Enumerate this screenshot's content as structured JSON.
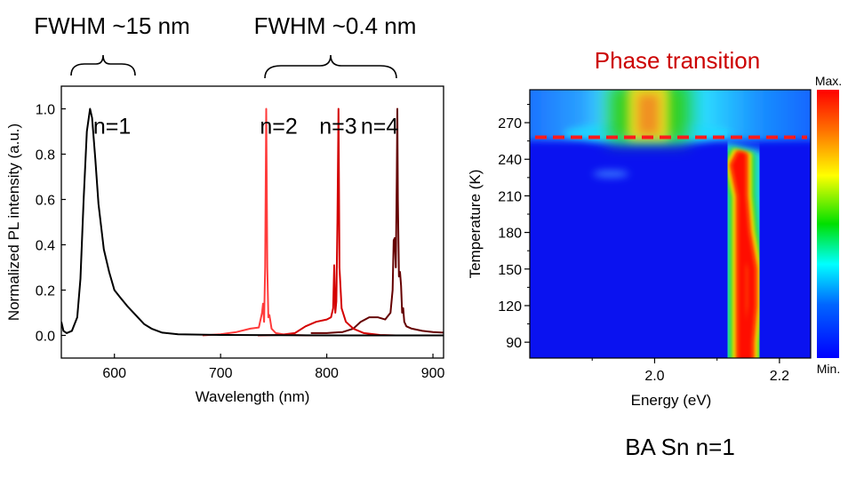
{
  "annotations": {
    "fwhm_left": "FWHM ~15 nm",
    "fwhm_right": "FWHM ~0.4 nm",
    "phase_transition": "Phase transition",
    "sample_label": "BA Sn n=1"
  },
  "colors": {
    "n1": "#000000",
    "n2": "#ff3b3b",
    "n3": "#d40000",
    "n4": "#650000",
    "dashed_line": "#ff1a1a",
    "phase_text": "#cc0000"
  },
  "chart_data": [
    {
      "type": "line",
      "title": "",
      "xlabel": "Wavelength (nm)",
      "ylabel": "Normalized PL intensity (a.u.)",
      "xlim": [
        550,
        910
      ],
      "ylim": [
        -0.1,
        1.1
      ],
      "xticks": [
        600,
        700,
        800,
        900
      ],
      "xtick_labels": [
        "600",
        "700",
        "800",
        "900"
      ],
      "yticks": [
        0.0,
        0.2,
        0.4,
        0.6,
        0.8,
        1.0
      ],
      "ytick_labels": [
        "0.0",
        "0.2",
        "0.4",
        "0.6",
        "0.8",
        "1.0"
      ],
      "grid": false,
      "series": [
        {
          "name": "n=1",
          "label_x": 580,
          "x": [
            550,
            552,
            555,
            560,
            565,
            568,
            571,
            574,
            577,
            579,
            582,
            585,
            590,
            595,
            600,
            605,
            612,
            620,
            628,
            635,
            645,
            660,
            700,
            800,
            910
          ],
          "y": [
            0.06,
            0.02,
            0.01,
            0.02,
            0.08,
            0.25,
            0.6,
            0.9,
            1.0,
            0.96,
            0.78,
            0.58,
            0.38,
            0.28,
            0.2,
            0.17,
            0.13,
            0.09,
            0.05,
            0.03,
            0.012,
            0.005,
            0.002,
            0.0,
            0.0
          ]
        },
        {
          "name": "n=2",
          "label_x": 737,
          "x": [
            683,
            700,
            715,
            728,
            736,
            739,
            740,
            741,
            742,
            743,
            744,
            745,
            746,
            748,
            752,
            760,
            780,
            865
          ],
          "y": [
            0.0,
            0.005,
            0.015,
            0.03,
            0.035,
            0.1,
            0.14,
            0.06,
            0.3,
            1.0,
            0.3,
            0.08,
            0.09,
            0.03,
            0.01,
            0.004,
            0.0,
            0.0
          ]
        },
        {
          "name": "n=3",
          "label_x": 793,
          "x": [
            735,
            755,
            770,
            780,
            790,
            800,
            804,
            806,
            807,
            808,
            809,
            810,
            811,
            812,
            814,
            818,
            825,
            835,
            850,
            865
          ],
          "y": [
            0.0,
            0.002,
            0.01,
            0.04,
            0.06,
            0.07,
            0.08,
            0.12,
            0.31,
            0.1,
            0.15,
            0.5,
            1.0,
            0.3,
            0.12,
            0.06,
            0.03,
            0.01,
            0.002,
            0.0
          ]
        },
        {
          "name": "n=4",
          "label_x": 832,
          "x": [
            785,
            800,
            815,
            825,
            832,
            840,
            848,
            855,
            860,
            862,
            863,
            864,
            865,
            866,
            866.5,
            867,
            868,
            869,
            870,
            871,
            872,
            873,
            875,
            880,
            890,
            900,
            910
          ],
          "y": [
            0.01,
            0.01,
            0.015,
            0.03,
            0.06,
            0.08,
            0.08,
            0.07,
            0.1,
            0.2,
            0.42,
            0.43,
            0.3,
            0.7,
            1.0,
            0.6,
            0.26,
            0.28,
            0.22,
            0.1,
            0.12,
            0.06,
            0.04,
            0.03,
            0.02,
            0.015,
            0.012
          ]
        }
      ]
    },
    {
      "type": "heatmap",
      "title": "Phase transition",
      "xlabel": "Energy (eV)",
      "ylabel": "Temperature (K)",
      "xlim": [
        1.8,
        2.25
      ],
      "ylim": [
        77,
        297
      ],
      "xticks": [
        2.0,
        2.2
      ],
      "xtick_labels": [
        "2.0",
        "2.2"
      ],
      "yticks": [
        90,
        120,
        150,
        180,
        210,
        240,
        270
      ],
      "ytick_labels": [
        "90",
        "120",
        "150",
        "180",
        "210",
        "240",
        "270"
      ],
      "colorbar": {
        "max_label": "Max.",
        "min_label": "Min."
      },
      "phase_transition_temperature": 258,
      "high_temp_peak_energy": 1.99,
      "low_temp_ridge": {
        "temperature": [
          77,
          90,
          120,
          150,
          180,
          210,
          235,
          245
        ],
        "peak_energy": [
          2.15,
          2.15,
          2.155,
          2.155,
          2.145,
          2.14,
          2.13,
          2.14
        ]
      }
    }
  ]
}
